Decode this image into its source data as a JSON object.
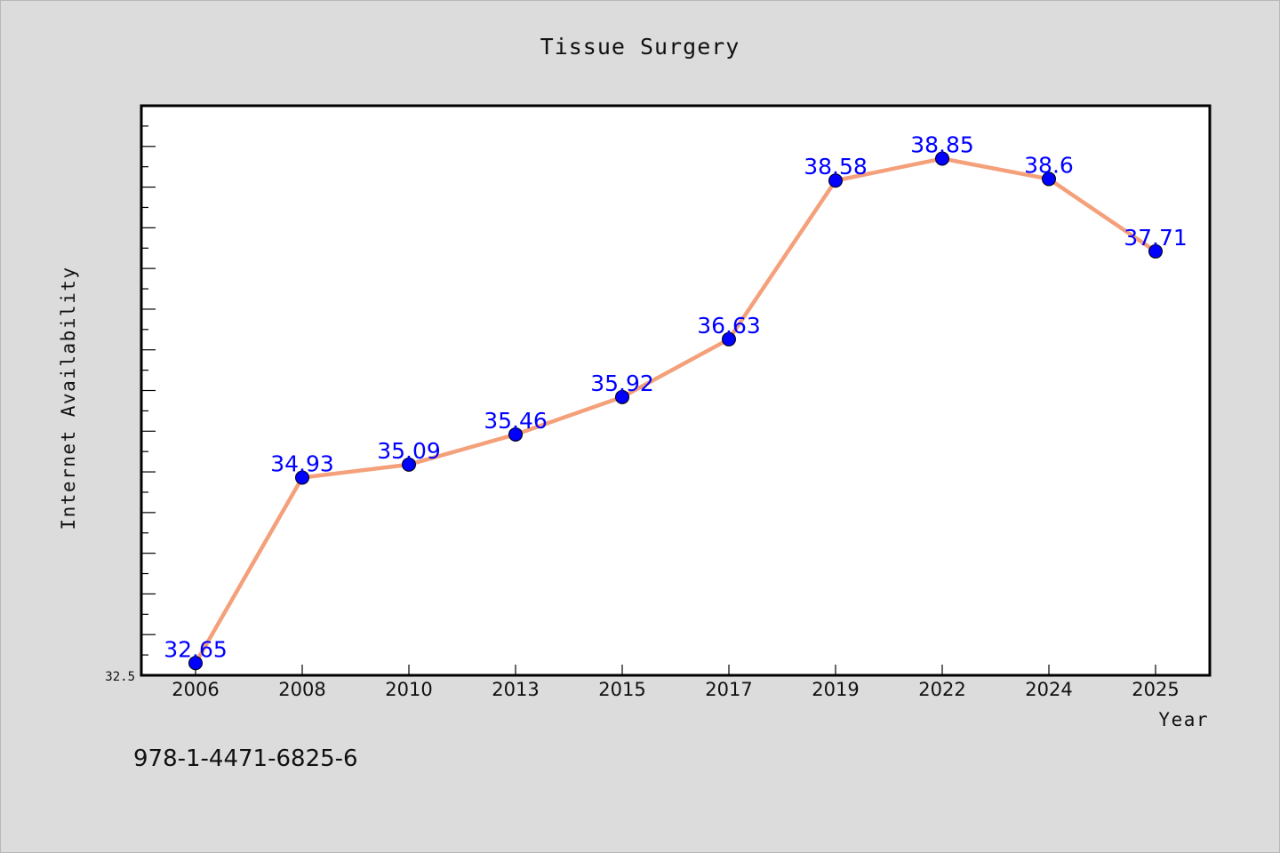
{
  "chart_data": {
    "type": "line",
    "title": "Tissue Surgery",
    "xlabel": "Year",
    "ylabel": "Internet Availability",
    "categories": [
      "2006",
      "2008",
      "2010",
      "2013",
      "2015",
      "2017",
      "2019",
      "2022",
      "2024",
      "2025"
    ],
    "series": [
      {
        "values": [
          32.65,
          34.93,
          35.09,
          35.46,
          35.92,
          36.63,
          38.58,
          38.85,
          38.6,
          37.71
        ],
        "data_labels": [
          "32.65",
          "34.93",
          "35.09",
          "35.46",
          "35.92",
          "36.63",
          "38.58",
          "38.85",
          "38.6",
          "37.71"
        ],
        "line_color": "#f4a07a",
        "marker_color": "#0000ff"
      }
    ],
    "ylim": [
      32.5,
      39.5
    ],
    "y_tick_labels": [
      "32.5"
    ],
    "grid": false,
    "legend": "none"
  },
  "annotation": "978-1-4471-6825-6",
  "colors": {
    "background": "#dcdcdc",
    "plot_area": "#ffffff",
    "line": "#f4a07a",
    "marker": "#0000ff",
    "data_label": "#0000ff"
  }
}
